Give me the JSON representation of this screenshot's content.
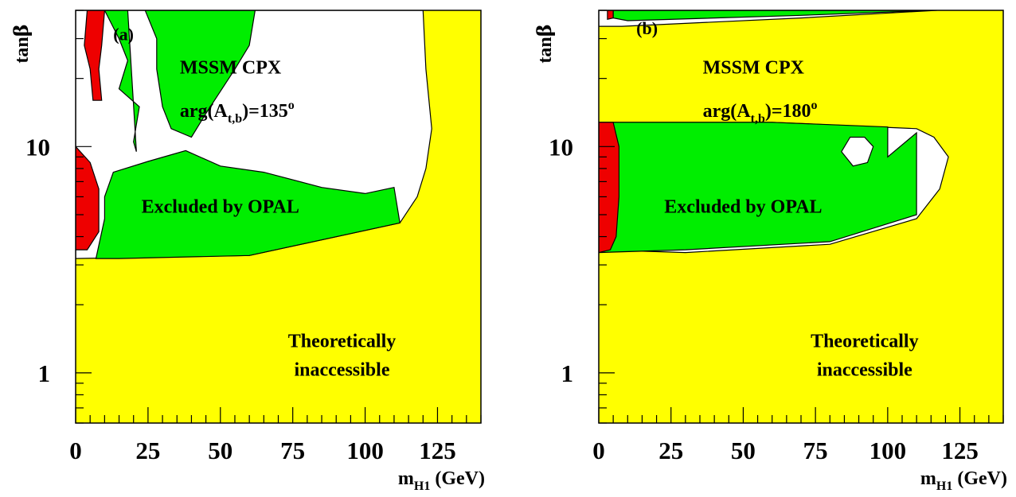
{
  "figure": {
    "colors": {
      "theoretically_inaccessible": "#ffff00",
      "excluded_by_opal": "#00ee00",
      "red_region": "#ee0000",
      "allowed": "#ffffff",
      "axes": "#000000"
    }
  },
  "chart_data": [
    {
      "type": "area",
      "panel_label": "(a)",
      "xlabel_main": "m",
      "xlabel_sub": "H1",
      "xlabel_unit": " (GeV)",
      "ylabel_main": "tan",
      "ylabel_symbol": "β",
      "xlim": [
        0,
        140
      ],
      "ylim": [
        0.6,
        40
      ],
      "y_scale": "log",
      "x_ticks": [
        0,
        25,
        50,
        75,
        100,
        125
      ],
      "y_ticks": [
        1,
        10
      ],
      "annotation_scenario": "MSSM CPX",
      "annotation_phase_main": "arg(A",
      "annotation_phase_sub": "t,b",
      "annotation_phase_rest": ")=135",
      "annotation_phase_sup": "o",
      "label_excluded": "Excluded by OPAL",
      "label_theory_1": "Theoretically",
      "label_theory_2": "inaccessible",
      "regions": {
        "allowed": [
          [
            0,
            40
          ],
          [
            120,
            40
          ],
          [
            121,
            22
          ],
          [
            123,
            12
          ],
          [
            121,
            8
          ],
          [
            118,
            6
          ],
          [
            112,
            4.6
          ],
          [
            60,
            3.3
          ],
          [
            0,
            3.2
          ]
        ],
        "excluded_lower": [
          [
            7,
            3.2
          ],
          [
            10,
            4.8
          ],
          [
            10,
            6
          ],
          [
            13,
            7.7
          ],
          [
            25,
            8.6
          ],
          [
            38,
            9.6
          ],
          [
            50,
            8.2
          ],
          [
            65,
            7.7
          ],
          [
            85,
            6.6
          ],
          [
            100,
            6.2
          ],
          [
            110,
            6.6
          ],
          [
            112,
            4.6
          ],
          [
            60,
            3.3
          ],
          [
            15,
            3.2
          ],
          [
            8,
            3.2
          ]
        ],
        "excluded_upper": [
          [
            24,
            40
          ],
          [
            28,
            30
          ],
          [
            28,
            22
          ],
          [
            30,
            15
          ],
          [
            33,
            12
          ],
          [
            40,
            11
          ],
          [
            45,
            14
          ],
          [
            55,
            22
          ],
          [
            60,
            28
          ],
          [
            62,
            40
          ]
        ],
        "excluded_left": [
          [
            10,
            40
          ],
          [
            15,
            30
          ],
          [
            18,
            24
          ],
          [
            15,
            18
          ],
          [
            22,
            15
          ],
          [
            20,
            10.5
          ],
          [
            21,
            9.5
          ],
          [
            18,
            40
          ]
        ],
        "red_low": [
          [
            0,
            3.5
          ],
          [
            0,
            10
          ],
          [
            5,
            8.5
          ],
          [
            8,
            6.5
          ],
          [
            8,
            4.2
          ],
          [
            4,
            3.5
          ]
        ],
        "red_high": [
          [
            4,
            40
          ],
          [
            10,
            40
          ],
          [
            9,
            28
          ],
          [
            8,
            22
          ],
          [
            9,
            16
          ],
          [
            6,
            16
          ],
          [
            5,
            22
          ],
          [
            3,
            28
          ]
        ]
      }
    },
    {
      "type": "area",
      "panel_label": "(b)",
      "xlabel_main": "m",
      "xlabel_sub": "H1",
      "xlabel_unit": " (GeV)",
      "ylabel_main": "tan",
      "ylabel_symbol": "β",
      "xlim": [
        0,
        140
      ],
      "ylim": [
        0.6,
        40
      ],
      "y_scale": "log",
      "x_ticks": [
        0,
        25,
        50,
        75,
        100,
        125
      ],
      "y_ticks": [
        1,
        10
      ],
      "annotation_scenario": "MSSM CPX",
      "annotation_phase_main": "arg(A",
      "annotation_phase_sub": "t,b",
      "annotation_phase_rest": ")=180",
      "annotation_phase_sup": "o",
      "label_excluded": "Excluded by OPAL",
      "label_theory_1": "Theoretically",
      "label_theory_2": "inaccessible",
      "regions": {
        "allowed_top": [
          [
            0,
            40
          ],
          [
            117,
            40
          ],
          [
            70,
            37
          ],
          [
            8,
            34
          ],
          [
            0,
            34
          ]
        ],
        "excluded_top": [
          [
            5,
            40
          ],
          [
            115,
            40
          ],
          [
            70,
            38
          ],
          [
            10,
            36
          ],
          [
            5,
            37
          ]
        ],
        "red_top": [
          [
            3,
            40
          ],
          [
            5,
            40
          ],
          [
            5,
            37
          ],
          [
            3,
            36.5
          ]
        ],
        "allowed_main": [
          [
            0,
            12.8
          ],
          [
            60,
            12.8
          ],
          [
            110,
            12
          ],
          [
            116,
            11
          ],
          [
            121,
            9
          ],
          [
            118,
            6.5
          ],
          [
            110,
            4.8
          ],
          [
            80,
            3.7
          ],
          [
            30,
            3.4
          ],
          [
            0,
            3.5
          ]
        ],
        "excluded_main": [
          [
            0,
            12.8
          ],
          [
            60,
            12.8
          ],
          [
            100,
            12.2
          ],
          [
            100,
            9
          ],
          [
            110,
            11.5
          ],
          [
            110,
            5
          ],
          [
            80,
            3.8
          ],
          [
            30,
            3.5
          ],
          [
            0,
            3.4
          ]
        ],
        "red_main": [
          [
            0,
            3.4
          ],
          [
            0,
            12.8
          ],
          [
            5,
            12.8
          ],
          [
            7,
            10
          ],
          [
            7,
            6
          ],
          [
            6,
            4
          ],
          [
            4,
            3.5
          ]
        ],
        "hole": [
          [
            84,
            9.5
          ],
          [
            87,
            11
          ],
          [
            92,
            11
          ],
          [
            95,
            10
          ],
          [
            93,
            8.5
          ],
          [
            88,
            8.2
          ]
        ]
      }
    }
  ]
}
